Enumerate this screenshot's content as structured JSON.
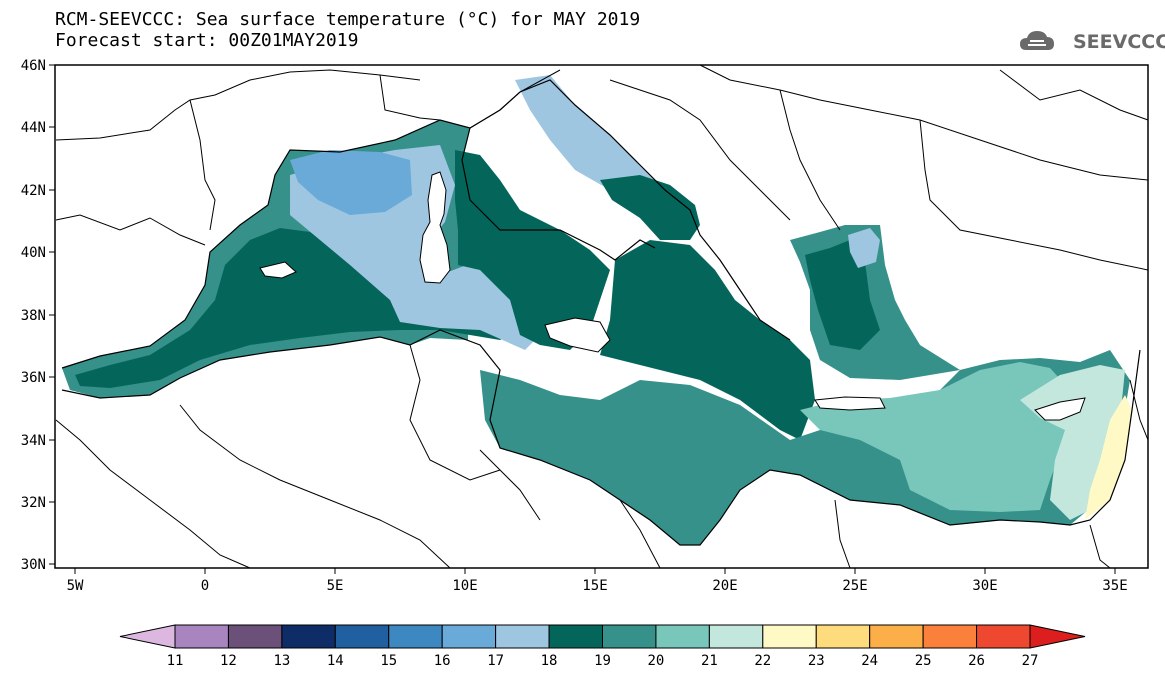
{
  "title": {
    "line1": "RCM-SEEVCCC: Sea surface temperature (°C) for MAY 2019",
    "line2": "Forecast start: 00Z01MAY2019"
  },
  "logo": {
    "text": "SEEVCCC",
    "icon": "cloud-icon"
  },
  "map": {
    "lat_labels": [
      "46N",
      "44N",
      "42N",
      "40N",
      "38N",
      "36N",
      "34N",
      "32N",
      "30N"
    ],
    "lon_labels": [
      "5W",
      "0",
      "5E",
      "10E",
      "15E",
      "20E",
      "25E",
      "30E",
      "35E"
    ],
    "lon_range": [
      -6,
      36
    ],
    "lat_range": [
      30,
      46
    ]
  },
  "colorbar": {
    "ticks": [
      "11",
      "12",
      "13",
      "14",
      "15",
      "16",
      "17",
      "18",
      "19",
      "20",
      "21",
      "22",
      "23",
      "24",
      "25",
      "26",
      "27"
    ],
    "colors": [
      "#dcb8e0",
      "#a985bf",
      "#6b5079",
      "#0e2d66",
      "#2160a0",
      "#3d88c0",
      "#6aaad8",
      "#9fc6e1",
      "#04665a",
      "#35918a",
      "#79c7bb",
      "#c3e6dd",
      "#fffac5",
      "#fedc7d",
      "#fcae49",
      "#fa803c",
      "#ef4830",
      "#dc1e1e"
    ],
    "unit": "°C"
  },
  "legend_colors": {
    "16": "#6aaad8",
    "17": "#9fc6e1",
    "19": "#04665a",
    "20": "#35918a",
    "21": "#79c7bb",
    "22": "#c3e6dd",
    "23": "#fffac5"
  }
}
